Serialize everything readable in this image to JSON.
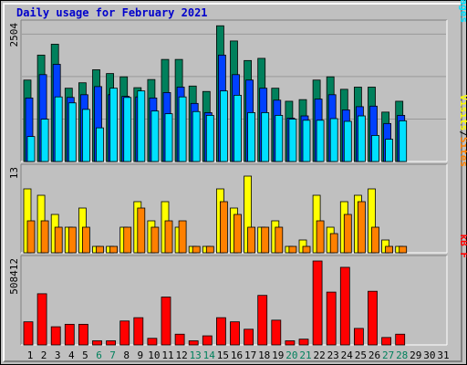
{
  "title": "Daily usage for February 2021",
  "colors": {
    "hits": "#00805c",
    "files": "#0040ff",
    "pages": "#00e0ff",
    "visits": "#ffff00",
    "sites": "#ff8000",
    "kbytes": "#ff0000",
    "weekend_label": "#00805c",
    "weekday_label": "#000000",
    "background": "#c0c0c0"
  },
  "chart_data": [
    {
      "type": "bar",
      "panel": "usage",
      "y_max_label": "2504",
      "ylim": [
        0,
        2504
      ],
      "grid": true,
      "legend_position": "right-vertical",
      "legend": [
        {
          "name": "Pages",
          "color": "#00e0ff"
        },
        {
          "name": "Files",
          "color": "#0040ff"
        },
        {
          "name": "Hits",
          "color": "#00805c"
        }
      ],
      "categories": [
        "1",
        "2",
        "3",
        "4",
        "5",
        "6",
        "7",
        "8",
        "9",
        "10",
        "11",
        "12",
        "13",
        "14",
        "15",
        "16",
        "17",
        "18",
        "19",
        "20",
        "21",
        "22",
        "23",
        "24",
        "25",
        "26",
        "27",
        "28",
        "29",
        "30",
        "31"
      ],
      "series": [
        {
          "name": "Hits",
          "values": [
            1500,
            1960,
            2160,
            1350,
            1450,
            1690,
            1620,
            1560,
            1360,
            1510,
            1880,
            1880,
            1390,
            1290,
            2500,
            2220,
            1860,
            1900,
            1350,
            1110,
            1140,
            1500,
            1560,
            1330,
            1370,
            1370,
            910,
            1110,
            0,
            0,
            0
          ]
        },
        {
          "name": "Files",
          "values": [
            1170,
            1600,
            1790,
            1180,
            1230,
            1380,
            1230,
            1200,
            1190,
            1170,
            1270,
            1370,
            1070,
            900,
            1960,
            1600,
            1500,
            1350,
            1130,
            800,
            840,
            1150,
            1230,
            950,
            1010,
            1020,
            700,
            850,
            0,
            0,
            0
          ]
        },
        {
          "name": "Pages",
          "values": [
            460,
            780,
            1190,
            1080,
            960,
            620,
            1350,
            1180,
            1300,
            930,
            880,
            1190,
            920,
            850,
            1300,
            1220,
            900,
            900,
            850,
            780,
            760,
            760,
            790,
            740,
            840,
            480,
            410,
            750,
            0,
            0,
            0
          ]
        }
      ]
    },
    {
      "type": "bar",
      "panel": "visits",
      "y_max_label": "13",
      "ylim": [
        0,
        13
      ],
      "legend_position": "right-vertical",
      "legend": [
        {
          "name": "Sites",
          "color": "#ff8000"
        },
        {
          "name": "Visits",
          "color": "#ffff00"
        }
      ],
      "categories": [
        "1",
        "2",
        "3",
        "4",
        "5",
        "6",
        "7",
        "8",
        "9",
        "10",
        "11",
        "12",
        "13",
        "14",
        "15",
        "16",
        "17",
        "18",
        "19",
        "20",
        "21",
        "22",
        "23",
        "24",
        "25",
        "26",
        "27",
        "28",
        "29",
        "30",
        "31"
      ],
      "series": [
        {
          "name": "Visits",
          "values": [
            10,
            9,
            6,
            4,
            7,
            1,
            1,
            4,
            8,
            5,
            8,
            4,
            1,
            1,
            10,
            7,
            12,
            4,
            5,
            1,
            2,
            9,
            4,
            8,
            9,
            10,
            2,
            1,
            0,
            0,
            0
          ]
        },
        {
          "name": "Sites",
          "values": [
            5,
            5,
            4,
            4,
            4,
            1,
            1,
            4,
            7,
            4,
            5,
            5,
            1,
            1,
            8,
            6,
            4,
            4,
            4,
            1,
            1,
            5,
            3,
            6,
            8,
            4,
            1,
            1,
            0,
            0,
            0
          ]
        }
      ]
    },
    {
      "type": "bar",
      "panel": "kbytes",
      "y_max_label": "508412",
      "ylim": [
        0,
        508412
      ],
      "legend_position": "right-vertical",
      "legend": [
        {
          "name": "kB F",
          "color": "#ff0000"
        }
      ],
      "categories": [
        "1",
        "2",
        "3",
        "4",
        "5",
        "6",
        "7",
        "8",
        "9",
        "10",
        "11",
        "12",
        "13",
        "14",
        "15",
        "16",
        "17",
        "18",
        "19",
        "20",
        "21",
        "22",
        "23",
        "24",
        "25",
        "26",
        "27",
        "28",
        "29",
        "30",
        "31"
      ],
      "series": [
        {
          "name": "kB F",
          "values": [
            140000,
            310000,
            110000,
            125000,
            125000,
            25000,
            25000,
            145000,
            165000,
            40000,
            290000,
            65000,
            25000,
            55000,
            165000,
            140000,
            95000,
            300000,
            150000,
            25000,
            35000,
            508412,
            320000,
            470000,
            100000,
            325000,
            45000,
            65000,
            0,
            0,
            0
          ]
        }
      ]
    }
  ],
  "x_labels": [
    "1",
    "2",
    "3",
    "4",
    "5",
    "6",
    "7",
    "8",
    "9",
    "10",
    "11",
    "12",
    "13",
    "14",
    "15",
    "16",
    "17",
    "18",
    "19",
    "20",
    "21",
    "22",
    "23",
    "24",
    "25",
    "26",
    "27",
    "28",
    "29",
    "30",
    "31"
  ],
  "weekend_days": [
    6,
    7,
    13,
    14,
    20,
    21,
    27,
    28
  ]
}
